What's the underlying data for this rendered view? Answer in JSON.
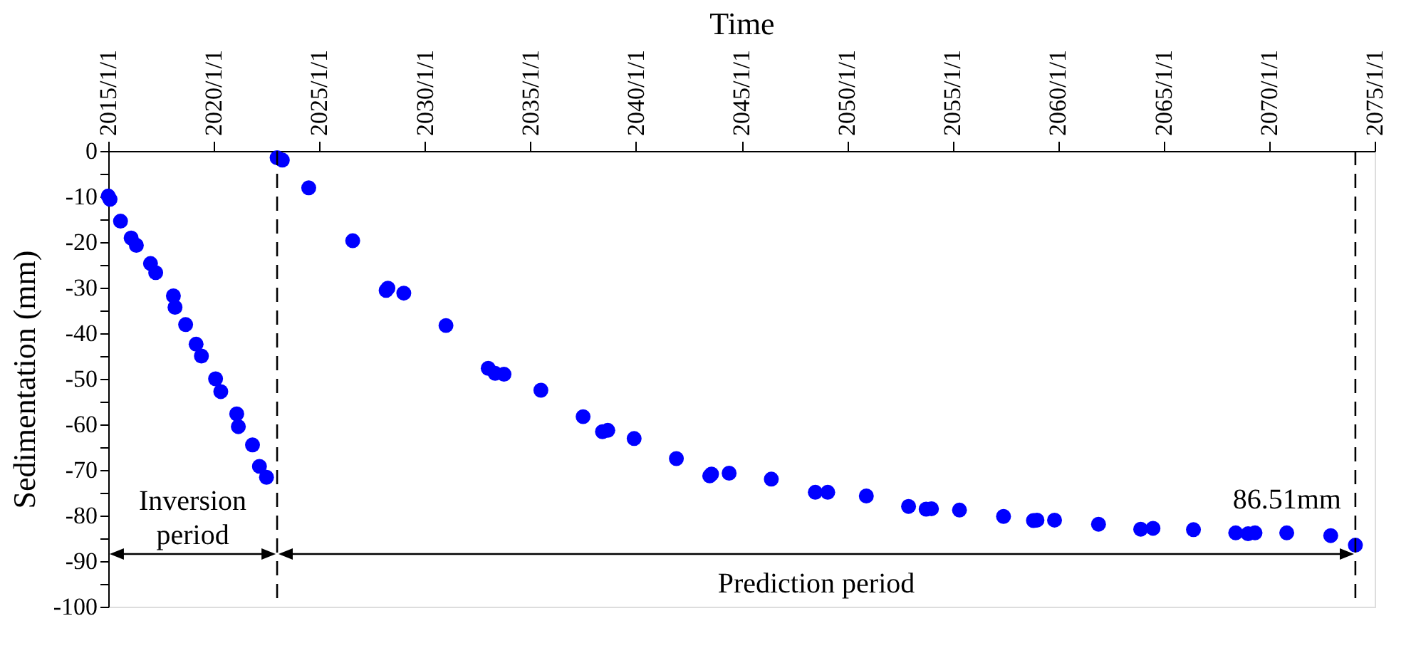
{
  "chart_data": {
    "type": "scatter",
    "xlabel": "Time",
    "ylabel": "Sedimentation (mm)",
    "x": [
      "2015-01",
      "2015-02",
      "2015-08",
      "2016-02",
      "2016-05",
      "2017-01",
      "2017-04",
      "2018-02",
      "2018-03",
      "2018-09",
      "2019-03",
      "2019-06",
      "2020-02",
      "2020-05",
      "2021-02",
      "2021-03",
      "2021-11",
      "2022-03",
      "2022-07",
      "2023-01",
      "2023-04",
      "2024-07",
      "2026-08",
      "2028-03",
      "2028-04",
      "2029-01",
      "2031-01",
      "2033-01",
      "2033-05",
      "2033-10",
      "2035-07",
      "2037-07",
      "2038-06",
      "2038-09",
      "2039-12",
      "2041-12",
      "2043-07",
      "2043-08",
      "2044-06",
      "2046-06",
      "2048-07",
      "2049-02",
      "2050-12",
      "2052-12",
      "2053-10",
      "2054-01",
      "2055-05",
      "2057-06",
      "2058-11",
      "2059-01",
      "2059-11",
      "2061-12",
      "2063-12",
      "2064-07",
      "2066-06",
      "2068-06",
      "2069-01",
      "2069-05",
      "2070-11",
      "2072-12",
      "2074-02"
    ],
    "series": [
      {
        "color": "#0000ff",
        "values": [
          -9.9,
          -10.6,
          -15.4,
          -19.1,
          -20.7,
          -24.7,
          -26.7,
          -31.8,
          -34.3,
          -38.1,
          -42.4,
          -45.0,
          -50.0,
          -52.8,
          -57.7,
          -60.5,
          -64.5,
          -69.2,
          -71.6,
          -1.5,
          -2.0,
          -8.1,
          -19.7,
          -30.6,
          -30.1,
          -31.2,
          -38.3,
          -47.7,
          -48.8,
          -49.0,
          -52.5,
          -58.3,
          -61.6,
          -61.3,
          -63.1,
          -67.5,
          -71.3,
          -70.9,
          -70.7,
          -72.0,
          -74.9,
          -74.9,
          -75.7,
          -78.0,
          -78.6,
          -78.5,
          -78.8,
          -80.2,
          -81.1,
          -81.0,
          -81.0,
          -81.9,
          -83.0,
          -82.8,
          -83.1,
          -83.8,
          -84.0,
          -83.8,
          -83.8,
          -84.4,
          -86.5
        ]
      }
    ],
    "xlim": [
      "2015-01-01",
      "2075-01-01"
    ],
    "xticks": [
      {
        "value": "2015-01-01",
        "label": "2015/1/1"
      },
      {
        "value": "2020-01-01",
        "label": "2020/1/1"
      },
      {
        "value": "2025-01-01",
        "label": "2025/1/1"
      },
      {
        "value": "2030-01-01",
        "label": "2030/1/1"
      },
      {
        "value": "2035-01-01",
        "label": "2035/1/1"
      },
      {
        "value": "2040-01-01",
        "label": "2040/1/1"
      },
      {
        "value": "2045-01-01",
        "label": "2045/1/1"
      },
      {
        "value": "2050-01-01",
        "label": "2050/1/1"
      },
      {
        "value": "2055-01-01",
        "label": "2055/1/1"
      },
      {
        "value": "2060-01-01",
        "label": "2060/1/1"
      },
      {
        "value": "2065-01-01",
        "label": "2065/1/1"
      },
      {
        "value": "2070-01-01",
        "label": "2070/1/1"
      },
      {
        "value": "2075-01-01",
        "label": "2075/1/1"
      }
    ],
    "ylim": [
      -100,
      0
    ],
    "yticks": [
      -100,
      {
        "value": -95,
        "label": null
      },
      -90,
      {
        "value": -85,
        "label": null
      },
      -80,
      {
        "value": -75,
        "label": null
      },
      -70,
      {
        "value": -65,
        "label": null
      },
      -60,
      {
        "value": -55,
        "label": null
      },
      -50,
      {
        "value": -45,
        "label": null
      },
      -40,
      {
        "value": -35,
        "label": null
      },
      -30,
      {
        "value": -25,
        "label": null
      },
      -20,
      {
        "value": -15,
        "label": null
      },
      -10,
      {
        "value": -5,
        "label": null
      },
      0
    ],
    "ref_lines": [
      {
        "axis": "x",
        "value": "2023-01-01",
        "line_style": "dashed",
        "color": "#000000"
      },
      {
        "axis": "x",
        "value": "2074-02-01",
        "line_style": "dashed",
        "color": "#000000"
      }
    ],
    "annotations": [
      "Inversion\nperiod",
      "Prediction period",
      "86.51mm"
    ],
    "marker": "circle",
    "grid": false,
    "legend": false
  }
}
